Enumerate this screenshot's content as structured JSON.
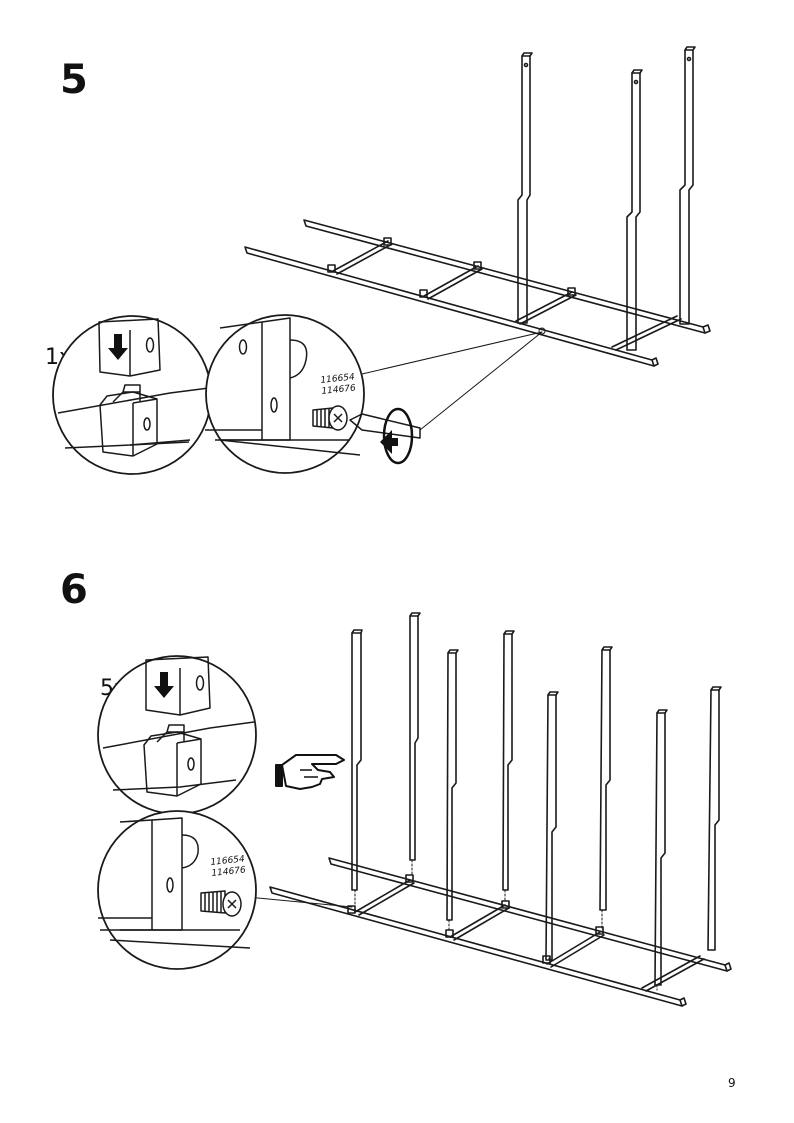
{
  "page": {
    "number": "9"
  },
  "steps": [
    {
      "number": "5",
      "quantity": "1x",
      "part_codes": [
        "116654",
        "114676"
      ]
    },
    {
      "number": "6",
      "quantity": "5x",
      "part_codes": [
        "116654",
        "114676"
      ]
    }
  ],
  "icons": [
    "down-arrow-icon",
    "rotate-arrow-icon",
    "pointing-hand-icon",
    "screw-icon",
    "screwdriver-icon"
  ]
}
